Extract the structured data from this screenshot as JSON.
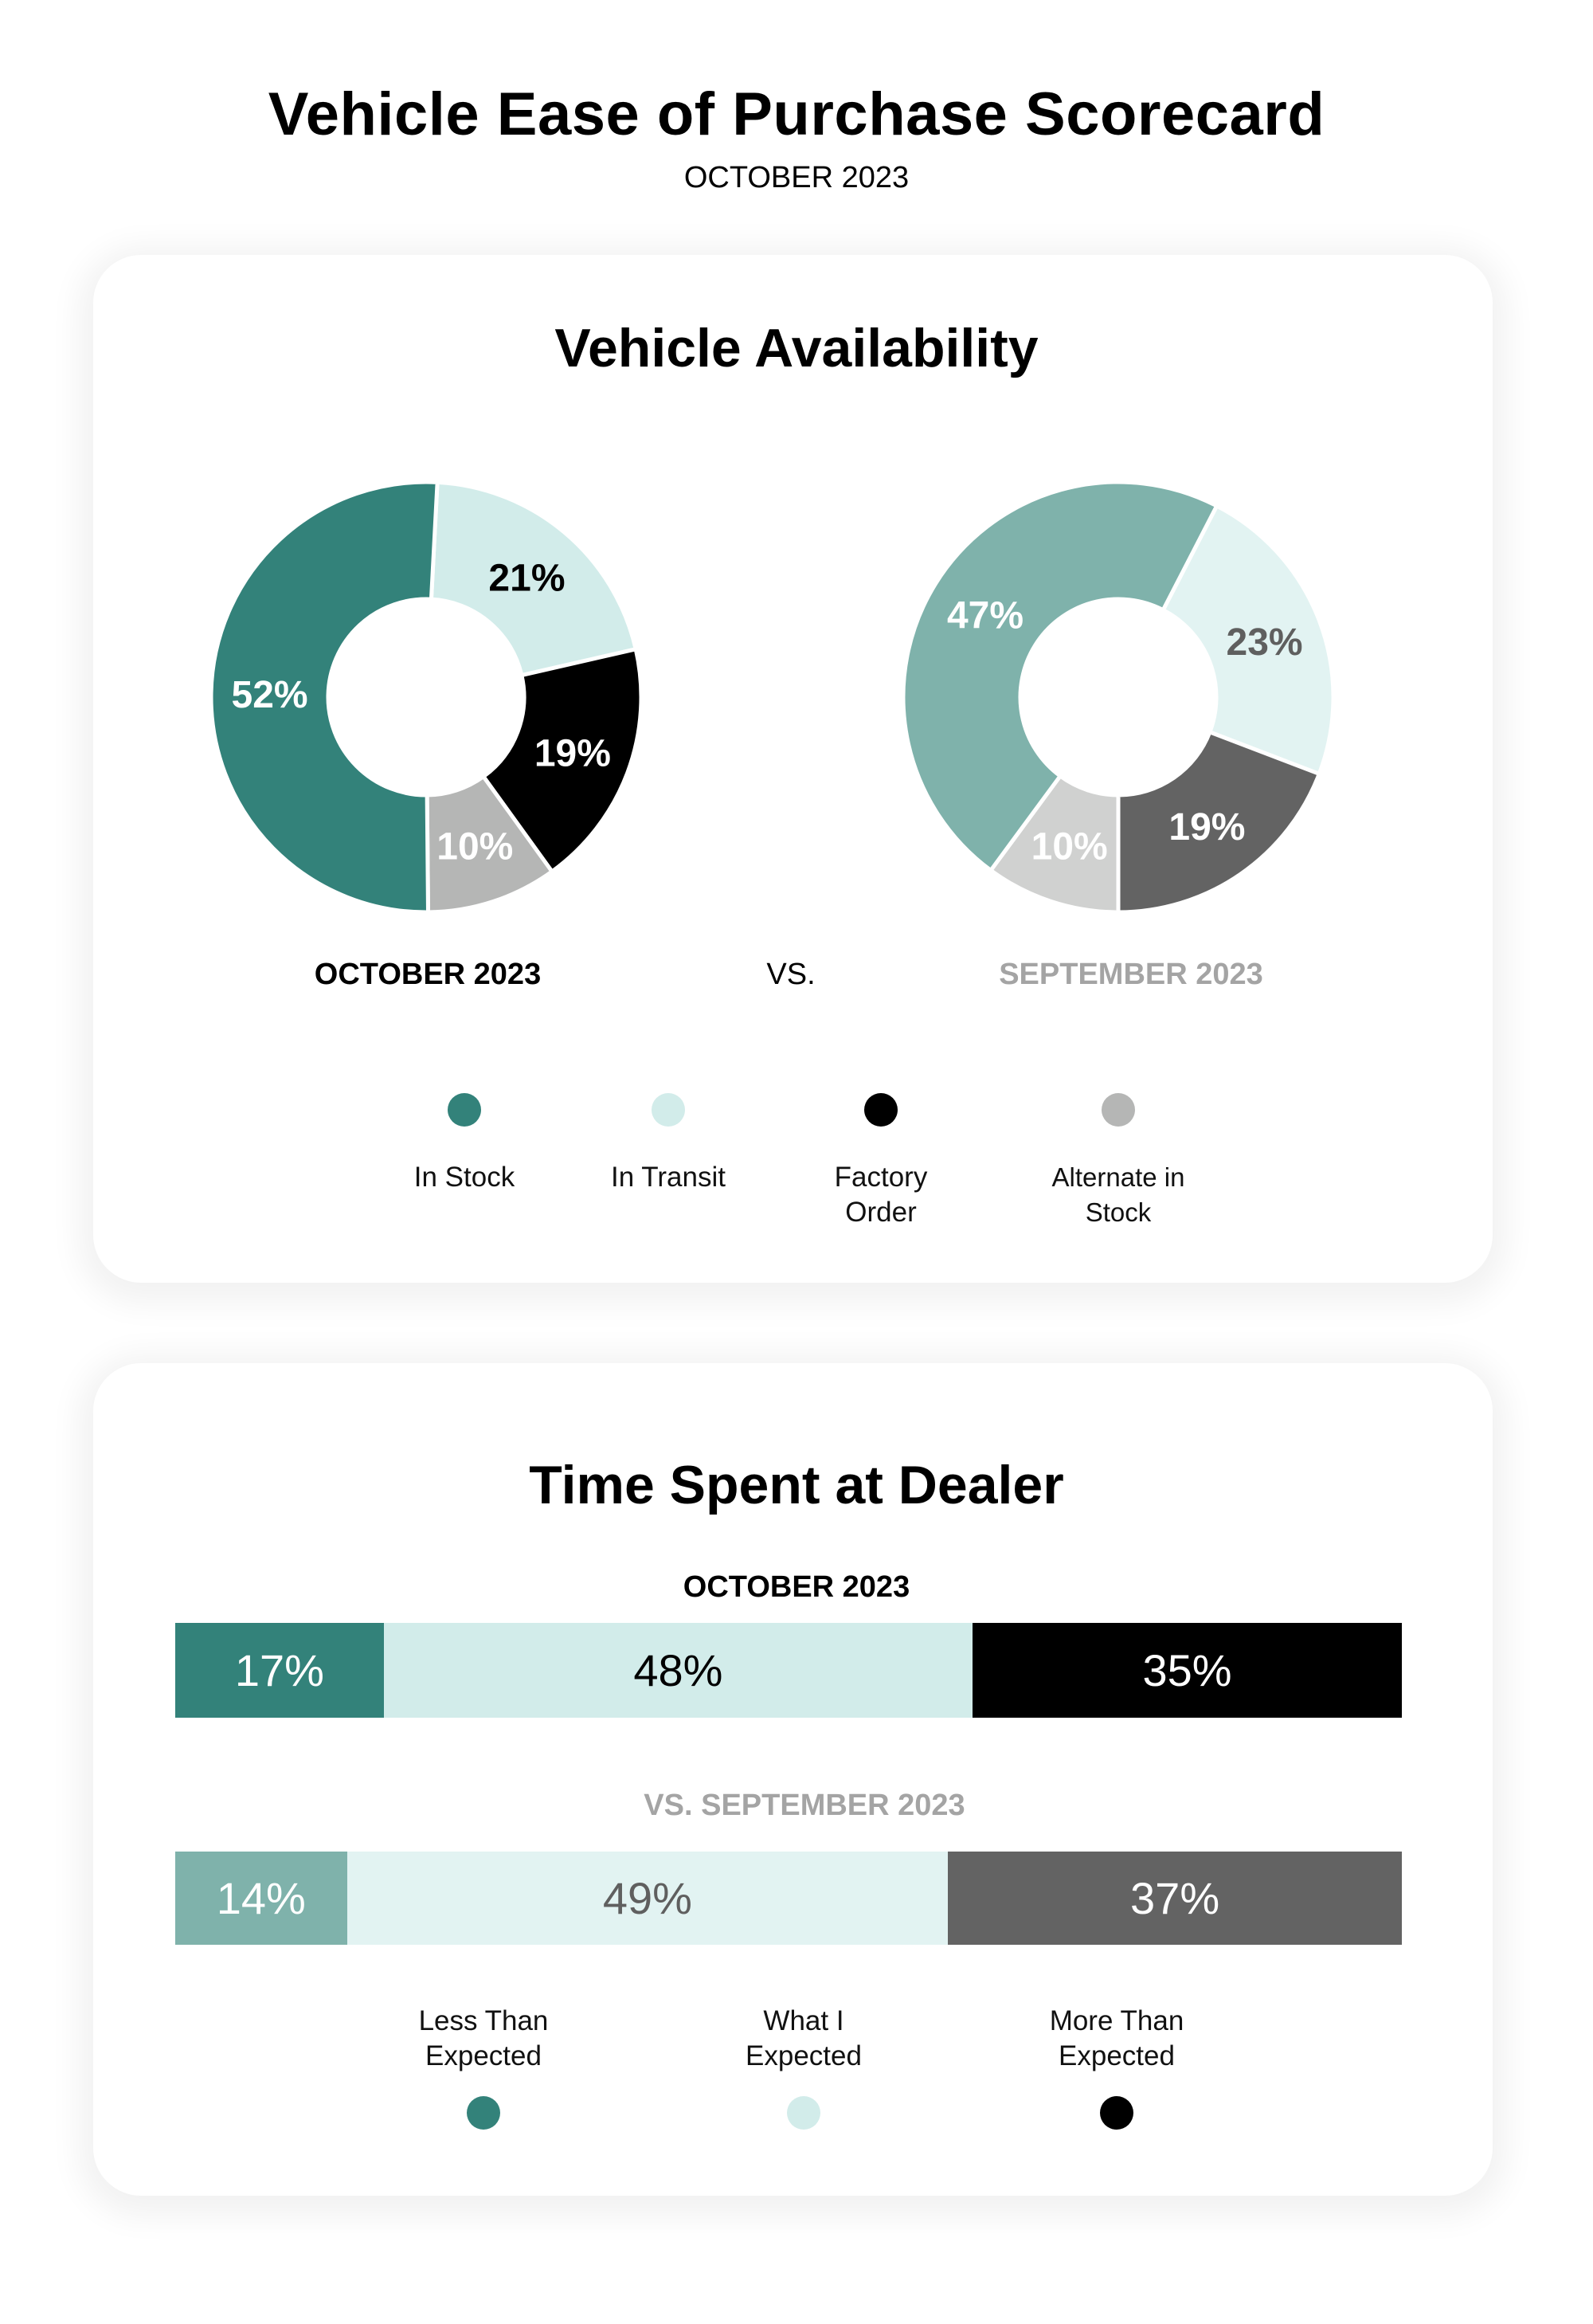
{
  "header": {
    "title": "Vehicle Ease of Purchase Scorecard",
    "subtitle": "OCTOBER 2023"
  },
  "availability": {
    "title": "Vehicle Availability",
    "current_label": "OCTOBER 2023",
    "vs_label": "VS.",
    "previous_label": "SEPTEMBER 2023",
    "legend": [
      {
        "label": "In Stock",
        "color": "#33827a"
      },
      {
        "label": "In Transit",
        "color": "#d2ecea"
      },
      {
        "label": "Factory Order",
        "color": "#000000"
      },
      {
        "label": "Alternate in Stock",
        "color": "#b5b6b5"
      }
    ]
  },
  "dealer_time": {
    "title": "Time Spent at Dealer",
    "current_label": "OCTOBER 2023",
    "previous_label": "VS. SEPTEMBER 2023",
    "legend": [
      {
        "label": "Less Than Expected",
        "color": "#33827a"
      },
      {
        "label": "What I Expected",
        "color": "#d2ecea"
      },
      {
        "label": "More Than Expected",
        "color": "#000000"
      }
    ]
  },
  "colors": {
    "teal": "#33827a",
    "light_teal": "#d2ecea",
    "black": "#000000",
    "gray": "#b5b6b5",
    "sept_teal": "#7fb2ab",
    "sept_light": "#e2f3f2",
    "sept_dark": "#636363",
    "sept_gray": "#d0d1d0",
    "muted_text": "#a4a4a4"
  },
  "chart_data": [
    {
      "type": "pie",
      "title": "Vehicle Availability — OCTOBER 2023",
      "donut": true,
      "start_angle_deg": 3,
      "slices": [
        {
          "label": "In Transit",
          "value": 21,
          "display": "21%",
          "color": "#d2ecea",
          "text_color": "#000000"
        },
        {
          "label": "Factory Order",
          "value": 19,
          "display": "19%",
          "color": "#000000",
          "text_color": "#ffffff"
        },
        {
          "label": "Alternate in Stock",
          "value": 10,
          "display": "10%",
          "color": "#b5b6b5",
          "text_color": "#ffffff"
        },
        {
          "label": "In Stock",
          "value": 52,
          "display": "52%",
          "color": "#33827a",
          "text_color": "#ffffff"
        }
      ]
    },
    {
      "type": "pie",
      "title": "Vehicle Availability — SEPTEMBER 2023",
      "donut": true,
      "start_angle_deg": 180,
      "slices": [
        {
          "label": "Alternate in Stock",
          "value": 10,
          "display": "10%",
          "color": "#d0d1d0",
          "text_color": "#ffffff"
        },
        {
          "label": "In Stock",
          "value": 47,
          "display": "47%",
          "color": "#7fb2ab",
          "text_color": "#ffffff"
        },
        {
          "label": "In Transit",
          "value": 23,
          "display": "23%",
          "color": "#e2f3f2",
          "text_color": "#5f5f5f"
        },
        {
          "label": "Factory Order",
          "value": 19,
          "display": "19%",
          "color": "#636363",
          "text_color": "#ffffff"
        }
      ]
    },
    {
      "type": "bar",
      "stacked": true,
      "orientation": "horizontal",
      "title": "Time Spent at Dealer — OCTOBER 2023",
      "categories": [
        "Less Than Expected",
        "What I Expected",
        "More Than Expected"
      ],
      "values": [
        17,
        48,
        35
      ],
      "display": [
        "17%",
        "48%",
        "35%"
      ],
      "colors": [
        "#33827a",
        "#d2ecea",
        "#000000"
      ],
      "text_colors": [
        "#ffffff",
        "#000000",
        "#ffffff"
      ]
    },
    {
      "type": "bar",
      "stacked": true,
      "orientation": "horizontal",
      "title": "Time Spent at Dealer — SEPTEMBER 2023",
      "categories": [
        "Less Than Expected",
        "What I Expected",
        "More Than Expected"
      ],
      "values": [
        14,
        49,
        37
      ],
      "display": [
        "14%",
        "49%",
        "37%"
      ],
      "colors": [
        "#7fb2ab",
        "#e2f3f2",
        "#636363"
      ],
      "text_colors": [
        "#ffffff",
        "#5f5f5f",
        "#ffffff"
      ]
    }
  ]
}
